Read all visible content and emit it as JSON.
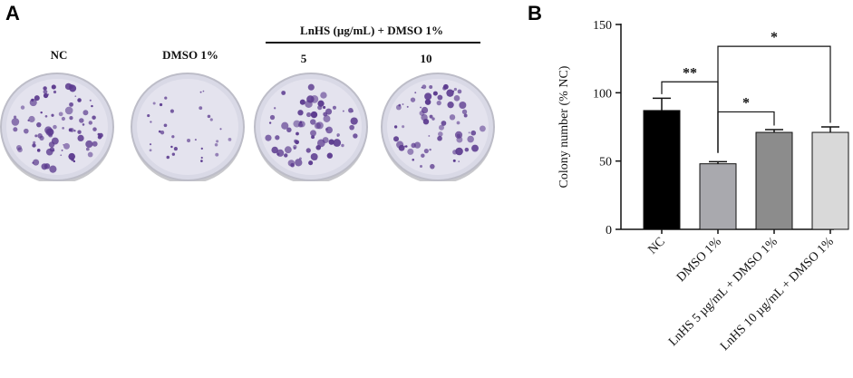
{
  "panel_a": {
    "letter": "A",
    "group_label": "LnHS (µg/mL) + DMSO 1%",
    "plates": [
      {
        "label": "NC",
        "density": 0.9
      },
      {
        "label": "DMSO 1%",
        "density": 0.35
      },
      {
        "label": "5",
        "density": 0.75
      },
      {
        "label": "10",
        "density": 0.75
      }
    ]
  },
  "panel_b": {
    "letter": "B"
  },
  "colors": {
    "plate_bg": "#d9d9e6",
    "colony": "#5b3a8e",
    "bar_nc": "#000000",
    "bar_dmso": "#a9a9ae",
    "bar_5": "#8c8c8c",
    "bar_10": "#d9d9d9"
  },
  "chart_data": {
    "type": "bar",
    "ylabel": "Colony number (% NC)",
    "ylim": [
      0,
      150
    ],
    "yticks": [
      0,
      50,
      100,
      150
    ],
    "categories": [
      "NC",
      "DMSO 1%",
      "LnHS 5 µg/mL + DMSO 1%",
      "LnHS 10 µg/mL + DMSO 1%"
    ],
    "values": [
      87,
      48,
      71,
      71
    ],
    "errors": [
      9,
      1.5,
      2,
      4
    ],
    "significance": [
      {
        "from": 0,
        "to": 1,
        "label": "**"
      },
      {
        "from": 1,
        "to": 2,
        "label": "*"
      },
      {
        "from": 1,
        "to": 3,
        "label": "*"
      }
    ]
  }
}
